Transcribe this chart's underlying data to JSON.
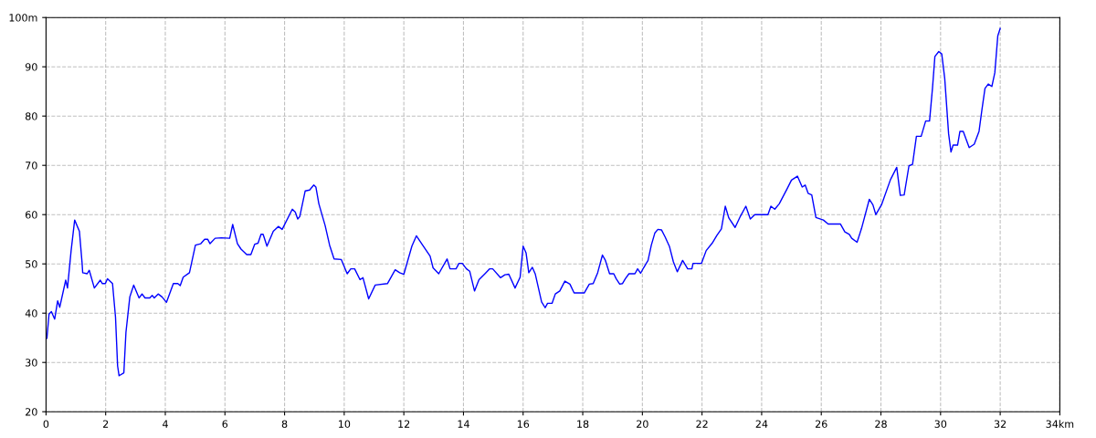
{
  "chart_data": {
    "type": "line",
    "xlim": [
      0,
      34
    ],
    "ylim": [
      20,
      100
    ],
    "xticks": [
      0,
      2,
      4,
      6,
      8,
      10,
      12,
      14,
      16,
      18,
      20,
      22,
      24,
      26,
      28,
      30,
      32,
      {
        "value": 34,
        "label": "34km"
      }
    ],
    "yticks": [
      20,
      30,
      40,
      50,
      60,
      70,
      80,
      90,
      {
        "value": 100,
        "label": "100m"
      }
    ],
    "grid": true,
    "marker": "none",
    "line_style": "solid",
    "series": [
      {
        "color": "#0000ff",
        "x": [
          0.03,
          0.1,
          0.18,
          0.29,
          0.39,
          0.46,
          0.66,
          0.72,
          0.84,
          0.96,
          1.12,
          1.21,
          1.23,
          1.38,
          1.45,
          1.62,
          1.82,
          1.89,
          1.99,
          2.06,
          2.23,
          2.33,
          2.4,
          2.45,
          2.61,
          2.68,
          2.81,
          2.94,
          3.12,
          3.22,
          3.32,
          3.48,
          3.56,
          3.63,
          3.76,
          3.89,
          4.04,
          4.27,
          4.42,
          4.5,
          4.6,
          4.81,
          5.01,
          5.19,
          5.32,
          5.42,
          5.5,
          5.67,
          5.88,
          6.16,
          6.26,
          6.42,
          6.54,
          6.73,
          6.87,
          7.0,
          7.11,
          7.21,
          7.28,
          7.41,
          7.62,
          7.79,
          7.92,
          8.26,
          8.36,
          8.44,
          8.51,
          8.69,
          8.84,
          8.98,
          9.05,
          9.15,
          9.36,
          9.51,
          9.66,
          9.9,
          10.1,
          10.22,
          10.35,
          10.53,
          10.63,
          10.82,
          11.04,
          11.45,
          11.71,
          11.86,
          12.0,
          12.27,
          12.42,
          12.63,
          12.88,
          12.98,
          13.17,
          13.45,
          13.55,
          13.75,
          13.85,
          13.96,
          14.1,
          14.21,
          14.37,
          14.52,
          14.72,
          14.88,
          14.98,
          15.24,
          15.39,
          15.52,
          15.73,
          15.9,
          16.0,
          16.1,
          16.19,
          16.31,
          16.41,
          16.62,
          16.74,
          16.82,
          16.97,
          17.08,
          17.23,
          17.4,
          17.57,
          17.71,
          18.05,
          18.22,
          18.35,
          18.5,
          18.66,
          18.76,
          18.9,
          19.04,
          19.12,
          19.24,
          19.33,
          19.43,
          19.55,
          19.75,
          19.84,
          19.94,
          20.04,
          20.19,
          20.3,
          20.42,
          20.52,
          20.64,
          20.76,
          20.91,
          21.04,
          21.17,
          21.35,
          21.52,
          21.66,
          21.7,
          21.98,
          22.14,
          22.34,
          22.5,
          22.65,
          22.78,
          22.9,
          23.11,
          23.29,
          23.47,
          23.62,
          23.77,
          24.21,
          24.31,
          24.44,
          24.59,
          24.85,
          25.0,
          25.2,
          25.36,
          25.46,
          25.56,
          25.68,
          25.82,
          26.07,
          26.23,
          26.64,
          26.79,
          26.94,
          27.02,
          27.2,
          27.35,
          27.61,
          27.73,
          27.83,
          28.02,
          28.32,
          28.53,
          28.65,
          28.78,
          28.94,
          29.06,
          29.19,
          29.35,
          29.5,
          29.63,
          29.73,
          29.81,
          29.94,
          30.04,
          30.14,
          30.27,
          30.35,
          30.42,
          30.57,
          30.65,
          30.76,
          30.96,
          31.13,
          31.29,
          31.39,
          31.49,
          31.6,
          31.72,
          31.82,
          31.92,
          32.0
        ],
        "values": [
          34.9,
          39.8,
          40.3,
          38.8,
          42.5,
          41.2,
          46.7,
          45.1,
          52.6,
          58.9,
          56.6,
          50.1,
          48.2,
          48.0,
          48.7,
          45.1,
          46.7,
          46.0,
          46.0,
          47.0,
          46.0,
          39.2,
          29.3,
          27.3,
          27.9,
          36.1,
          43.3,
          45.7,
          43.1,
          43.9,
          43.1,
          43.1,
          43.6,
          43.1,
          43.9,
          43.3,
          42.2,
          46.0,
          46.0,
          45.6,
          47.3,
          48.2,
          53.8,
          54.1,
          55.0,
          55.0,
          54.1,
          55.2,
          55.3,
          55.2,
          58.0,
          54.1,
          53.0,
          51.9,
          51.9,
          54.0,
          54.2,
          56.0,
          56.0,
          53.6,
          56.6,
          57.6,
          57.0,
          61.1,
          60.5,
          59.1,
          59.6,
          64.8,
          65.0,
          66.0,
          65.6,
          62.2,
          57.8,
          53.8,
          51.0,
          50.9,
          48.0,
          49.0,
          49.0,
          46.8,
          47.2,
          42.9,
          45.7,
          46.0,
          48.8,
          48.2,
          47.9,
          53.6,
          55.7,
          53.8,
          51.6,
          49.2,
          48.0,
          51.0,
          49.0,
          49.0,
          50.1,
          50.1,
          49.0,
          48.5,
          44.5,
          46.8,
          48.0,
          49.0,
          49.0,
          47.2,
          47.8,
          47.9,
          45.1,
          47.3,
          53.6,
          52.2,
          48.2,
          49.3,
          47.9,
          42.3,
          41.1,
          42.0,
          42.0,
          43.9,
          44.5,
          46.5,
          45.9,
          44.1,
          44.1,
          45.9,
          46.0,
          48.2,
          51.8,
          50.7,
          48.0,
          48.0,
          47.0,
          45.9,
          46.0,
          47.0,
          48.0,
          48.0,
          49.0,
          48.1,
          49.2,
          50.7,
          53.8,
          56.3,
          57.0,
          56.9,
          55.5,
          53.5,
          50.4,
          48.4,
          50.7,
          49.0,
          49.0,
          50.1,
          50.1,
          52.7,
          54.2,
          55.8,
          57.1,
          61.7,
          59.3,
          57.4,
          59.7,
          61.7,
          59.1,
          60.0,
          60.0,
          61.7,
          61.1,
          62.2,
          65.2,
          67.0,
          67.8,
          65.6,
          66.0,
          64.3,
          64.0,
          59.4,
          58.9,
          58.1,
          58.1,
          56.5,
          56.0,
          55.2,
          54.4,
          57.2,
          63.1,
          62.0,
          60.0,
          62.0,
          67.1,
          69.6,
          63.9,
          64.0,
          69.9,
          70.2,
          75.9,
          75.9,
          79.0,
          79.0,
          85.7,
          92.1,
          93.1,
          92.6,
          87.6,
          76.4,
          72.7,
          74.1,
          74.1,
          76.9,
          76.9,
          73.6,
          74.3,
          76.9,
          81.4,
          85.6,
          86.5,
          86.0,
          88.8,
          96.3,
          97.8
        ]
      }
    ]
  }
}
